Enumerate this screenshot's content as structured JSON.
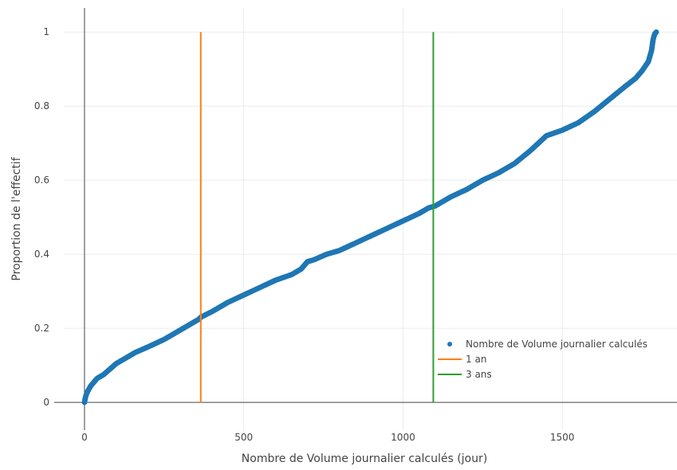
{
  "chart_data": {
    "type": "scatter",
    "title": "",
    "xlabel": "Nombre de Volume journalier calculés (jour)",
    "ylabel": "Proportion de l'effectif",
    "xlim": [
      -65,
      1860
    ],
    "ylim": [
      -0.075,
      1.065
    ],
    "x_ticks": [
      0,
      500,
      1000,
      1500
    ],
    "y_ticks": [
      0,
      0.2,
      0.4,
      0.6,
      0.8,
      1
    ],
    "x_tick_labels": [
      "0",
      "500",
      "1000",
      "1500"
    ],
    "y_tick_labels": [
      "0",
      "0.2",
      "0.4",
      "0.6",
      "0.8",
      "1"
    ],
    "grid": true,
    "legend_position": "bottom-right",
    "series": [
      {
        "name": "Nombre de Volume journalier calculés",
        "kind": "markers",
        "color": "#1f77b4",
        "x": [
          0,
          2,
          5,
          10,
          20,
          30,
          40,
          60,
          80,
          100,
          130,
          160,
          200,
          250,
          300,
          330,
          360,
          365,
          400,
          450,
          500,
          550,
          600,
          650,
          680,
          700,
          720,
          760,
          800,
          850,
          900,
          950,
          1000,
          1050,
          1080,
          1100,
          1150,
          1200,
          1230,
          1250,
          1300,
          1350,
          1400,
          1450,
          1500,
          1550,
          1600,
          1650,
          1700,
          1730,
          1750,
          1770,
          1780,
          1785,
          1790,
          1795
        ],
        "y": [
          0,
          0.01,
          0.02,
          0.03,
          0.045,
          0.055,
          0.065,
          0.075,
          0.09,
          0.105,
          0.12,
          0.135,
          0.15,
          0.17,
          0.195,
          0.21,
          0.225,
          0.23,
          0.245,
          0.27,
          0.29,
          0.31,
          0.33,
          0.345,
          0.36,
          0.38,
          0.385,
          0.4,
          0.41,
          0.43,
          0.45,
          0.47,
          0.49,
          0.51,
          0.525,
          0.53,
          0.555,
          0.575,
          0.59,
          0.6,
          0.62,
          0.645,
          0.68,
          0.72,
          0.735,
          0.755,
          0.785,
          0.82,
          0.855,
          0.875,
          0.895,
          0.92,
          0.95,
          0.98,
          0.995,
          1.0
        ]
      },
      {
        "name": "1 an",
        "kind": "vline",
        "color": "#ff7f0e",
        "x": [
          365,
          365
        ],
        "y": [
          0,
          1
        ]
      },
      {
        "name": "3 ans",
        "kind": "vline",
        "color": "#2ca02c",
        "x": [
          1095,
          1095
        ],
        "y": [
          0,
          1
        ]
      }
    ]
  }
}
